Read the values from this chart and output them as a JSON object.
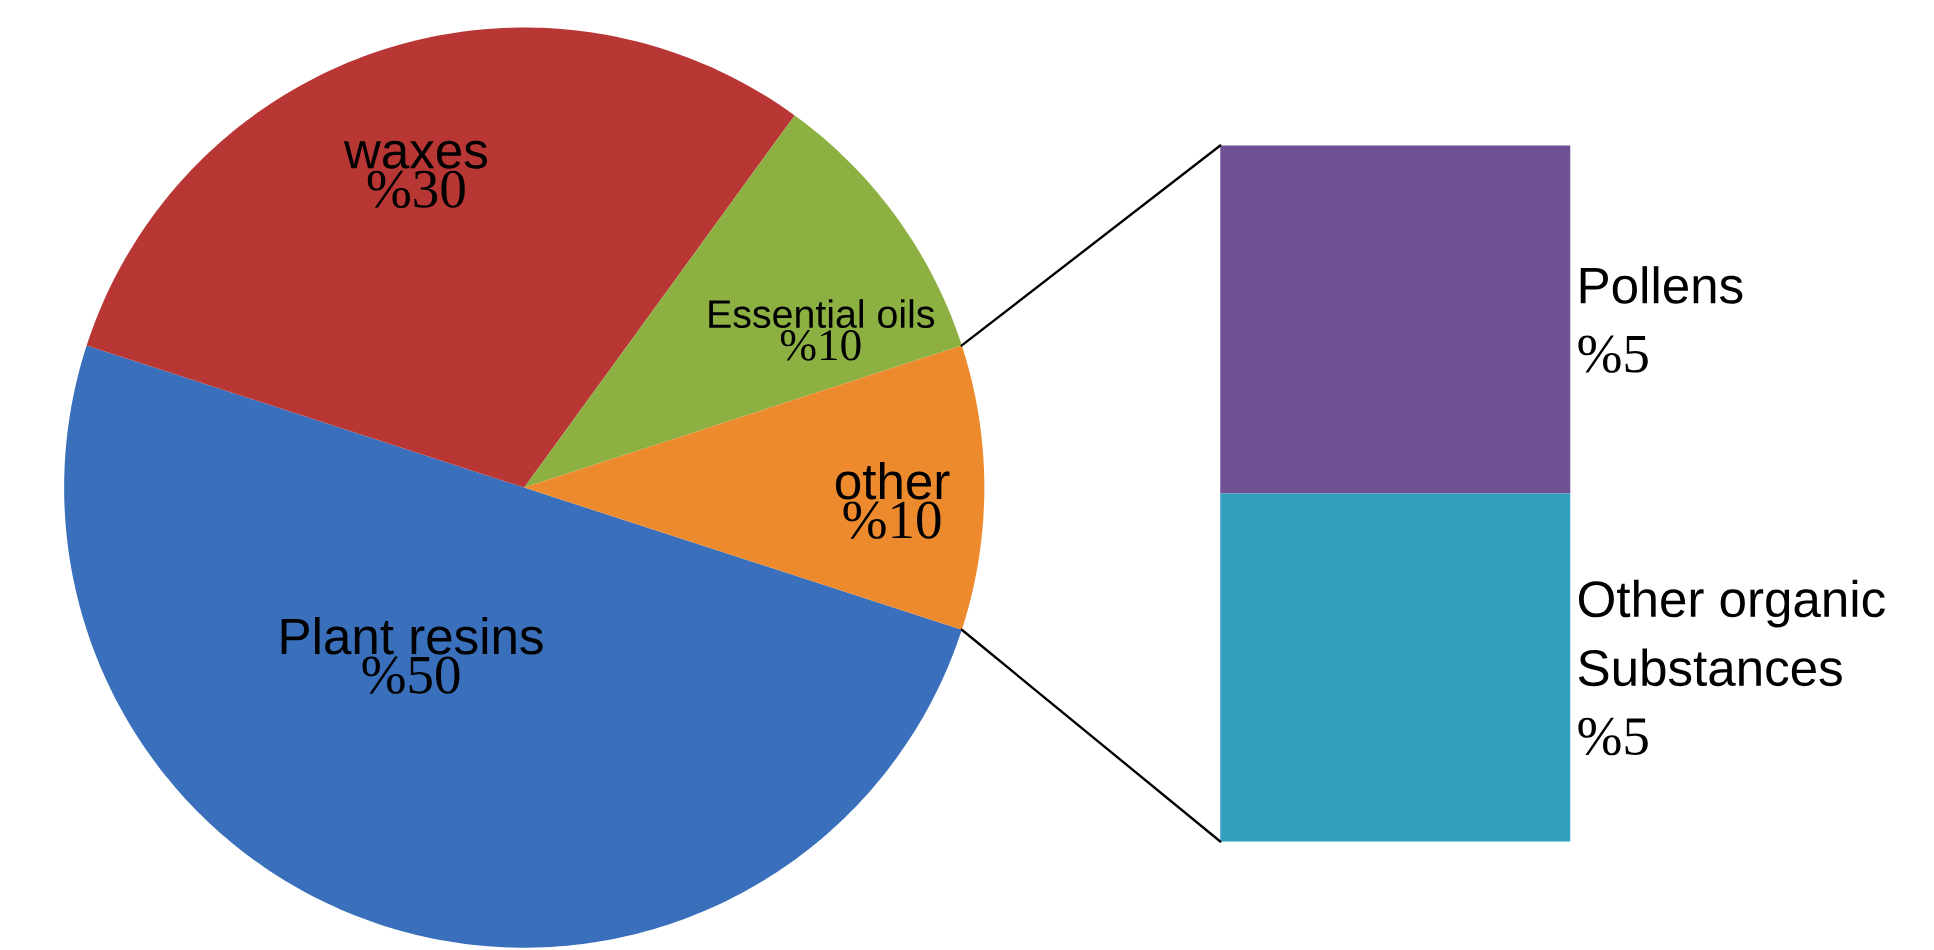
{
  "chart_data": [
    {
      "type": "pie",
      "categories": [
        "Plant resins",
        "waxes",
        "Essential oils",
        "other"
      ],
      "values": [
        50,
        30,
        10,
        10
      ],
      "value_labels": [
        "%50",
        "%30",
        "%10",
        "%10"
      ],
      "colors": [
        "#3a70bb",
        "#b83735",
        "#8db043",
        "#ed8a2e"
      ]
    },
    {
      "type": "bar",
      "stacked": true,
      "categories": [
        null
      ],
      "series": [
        {
          "name": "Other organic Substances",
          "color": "#31a0bf",
          "values": [
            5
          ],
          "value_labels": [
            "%5"
          ]
        },
        {
          "name": "Pollens",
          "color": "#6f5093",
          "values": [
            5
          ],
          "value_labels": [
            "%5"
          ]
        }
      ]
    }
  ]
}
